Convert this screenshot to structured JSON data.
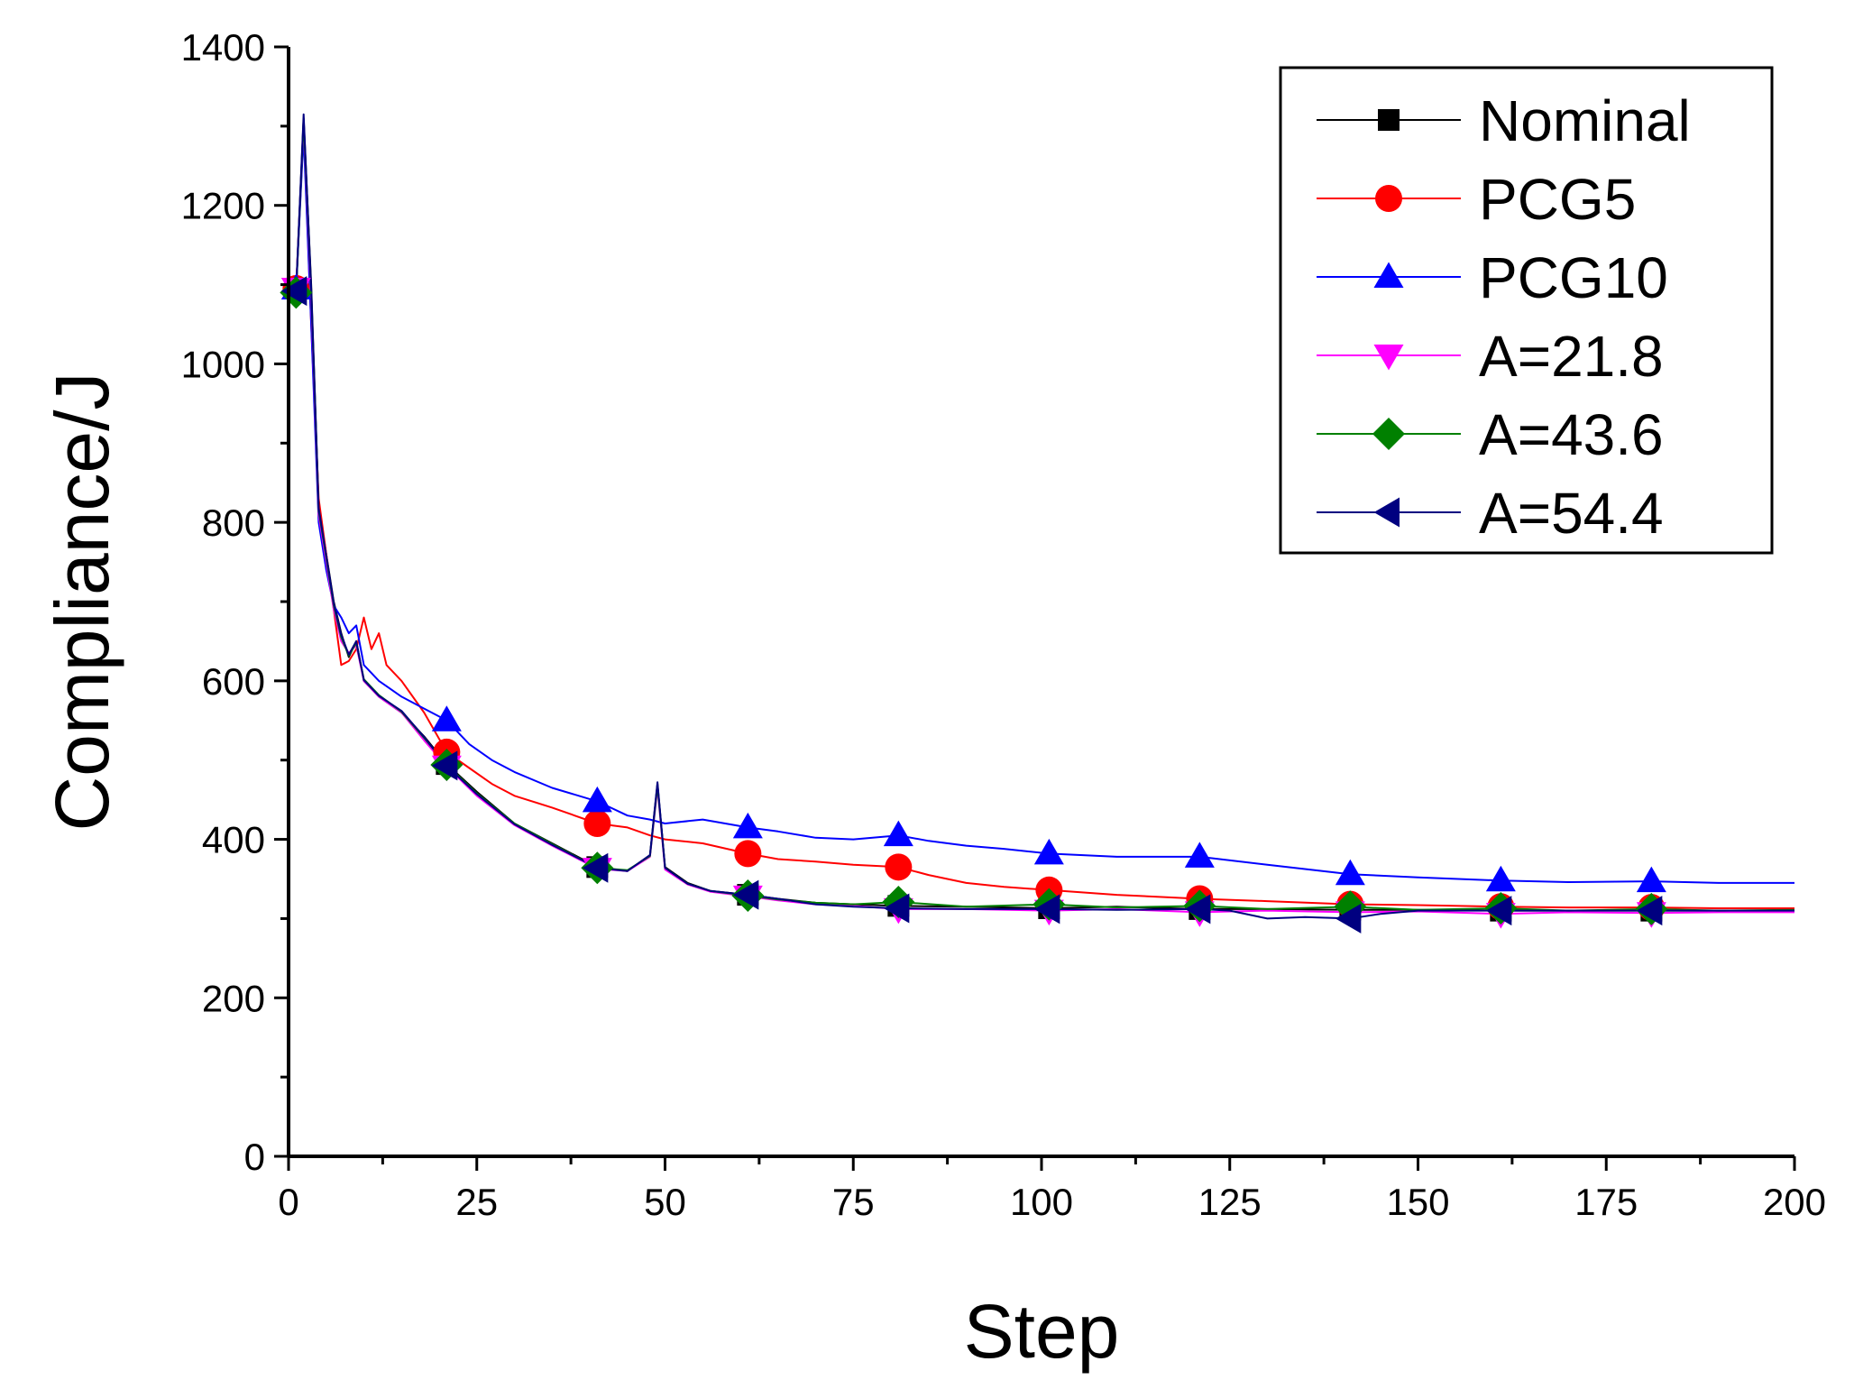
{
  "chart_data": {
    "type": "line",
    "title": "",
    "xlabel": "Step",
    "ylabel": "Compliance/J",
    "xlim": [
      0,
      200
    ],
    "ylim": [
      0,
      1400
    ],
    "xticks": [
      0,
      25,
      50,
      75,
      100,
      125,
      150,
      175,
      200
    ],
    "xtick_labels": [
      "0",
      "25",
      "50",
      "75",
      "100",
      "125",
      "150",
      "175",
      "200"
    ],
    "yticks": [
      0,
      200,
      400,
      600,
      800,
      1000,
      1200,
      1400
    ],
    "ytick_labels": [
      "0",
      "200",
      "400",
      "600",
      "800",
      "1000",
      "1200",
      "1400"
    ],
    "legend_position": "top-right",
    "marker_steps": [
      1,
      21,
      41,
      61,
      81,
      101,
      121,
      141,
      161,
      181
    ],
    "series": [
      {
        "name": "Nominal",
        "color": "#000000",
        "marker": "square",
        "points": [
          [
            0,
            1095
          ],
          [
            1,
            1095
          ],
          [
            2,
            1310
          ],
          [
            3,
            1100
          ],
          [
            4,
            820
          ],
          [
            5,
            760
          ],
          [
            6,
            700
          ],
          [
            7,
            660
          ],
          [
            8,
            630
          ],
          [
            9,
            650
          ],
          [
            10,
            600
          ],
          [
            12,
            580
          ],
          [
            15,
            560
          ],
          [
            18,
            530
          ],
          [
            21,
            495
          ],
          [
            25,
            460
          ],
          [
            30,
            420
          ],
          [
            35,
            395
          ],
          [
            41,
            365
          ],
          [
            45,
            360
          ],
          [
            48,
            380
          ],
          [
            49,
            470
          ],
          [
            50,
            365
          ],
          [
            53,
            345
          ],
          [
            56,
            335
          ],
          [
            61,
            330
          ],
          [
            65,
            325
          ],
          [
            70,
            320
          ],
          [
            75,
            318
          ],
          [
            81,
            316
          ],
          [
            90,
            315
          ],
          [
            101,
            313
          ],
          [
            110,
            315
          ],
          [
            121,
            312
          ],
          [
            130,
            312
          ],
          [
            141,
            311
          ],
          [
            150,
            311
          ],
          [
            161,
            310
          ],
          [
            170,
            310
          ],
          [
            181,
            310
          ],
          [
            190,
            310
          ],
          [
            200,
            310
          ]
        ]
      },
      {
        "name": "PCG5",
        "color": "#ff0000",
        "marker": "circle",
        "points": [
          [
            0,
            1095
          ],
          [
            1,
            1095
          ],
          [
            2,
            1300
          ],
          [
            3,
            1050
          ],
          [
            4,
            830
          ],
          [
            5,
            760
          ],
          [
            6,
            690
          ],
          [
            7,
            620
          ],
          [
            8,
            625
          ],
          [
            9,
            640
          ],
          [
            10,
            680
          ],
          [
            11,
            640
          ],
          [
            12,
            660
          ],
          [
            13,
            620
          ],
          [
            15,
            600
          ],
          [
            18,
            560
          ],
          [
            21,
            510
          ],
          [
            24,
            490
          ],
          [
            27,
            470
          ],
          [
            30,
            455
          ],
          [
            35,
            440
          ],
          [
            41,
            420
          ],
          [
            45,
            415
          ],
          [
            48,
            405
          ],
          [
            50,
            400
          ],
          [
            55,
            395
          ],
          [
            61,
            382
          ],
          [
            65,
            375
          ],
          [
            70,
            372
          ],
          [
            75,
            368
          ],
          [
            81,
            365
          ],
          [
            85,
            355
          ],
          [
            90,
            345
          ],
          [
            95,
            340
          ],
          [
            101,
            336
          ],
          [
            110,
            330
          ],
          [
            121,
            325
          ],
          [
            130,
            322
          ],
          [
            141,
            318
          ],
          [
            150,
            317
          ],
          [
            161,
            315
          ],
          [
            170,
            314
          ],
          [
            181,
            314
          ],
          [
            190,
            313
          ],
          [
            200,
            313
          ]
        ]
      },
      {
        "name": "PCG10",
        "color": "#0000ff",
        "marker": "triangle-up",
        "points": [
          [
            0,
            1095
          ],
          [
            1,
            1095
          ],
          [
            2,
            1290
          ],
          [
            3,
            1050
          ],
          [
            4,
            800
          ],
          [
            5,
            740
          ],
          [
            6,
            695
          ],
          [
            7,
            680
          ],
          [
            8,
            660
          ],
          [
            9,
            670
          ],
          [
            10,
            620
          ],
          [
            12,
            600
          ],
          [
            15,
            580
          ],
          [
            18,
            565
          ],
          [
            21,
            550
          ],
          [
            24,
            520
          ],
          [
            27,
            500
          ],
          [
            30,
            485
          ],
          [
            35,
            465
          ],
          [
            41,
            448
          ],
          [
            45,
            430
          ],
          [
            48,
            425
          ],
          [
            50,
            420
          ],
          [
            55,
            425
          ],
          [
            61,
            415
          ],
          [
            65,
            410
          ],
          [
            70,
            402
          ],
          [
            75,
            400
          ],
          [
            81,
            405
          ],
          [
            85,
            398
          ],
          [
            90,
            392
          ],
          [
            95,
            388
          ],
          [
            101,
            382
          ],
          [
            110,
            378
          ],
          [
            121,
            378
          ],
          [
            130,
            368
          ],
          [
            141,
            356
          ],
          [
            150,
            352
          ],
          [
            161,
            348
          ],
          [
            170,
            346
          ],
          [
            181,
            347
          ],
          [
            190,
            345
          ],
          [
            200,
            345
          ]
        ]
      },
      {
        "name": "A=21.8",
        "color": "#ff00ff",
        "marker": "triangle-down",
        "points": [
          [
            0,
            1095
          ],
          [
            1,
            1095
          ],
          [
            2,
            1305
          ],
          [
            3,
            1080
          ],
          [
            4,
            810
          ],
          [
            5,
            750
          ],
          [
            6,
            690
          ],
          [
            7,
            650
          ],
          [
            8,
            635
          ],
          [
            9,
            645
          ],
          [
            10,
            600
          ],
          [
            12,
            580
          ],
          [
            15,
            560
          ],
          [
            18,
            525
          ],
          [
            21,
            492
          ],
          [
            25,
            455
          ],
          [
            30,
            418
          ],
          [
            35,
            392
          ],
          [
            41,
            363
          ],
          [
            45,
            360
          ],
          [
            48,
            378
          ],
          [
            49,
            465
          ],
          [
            50,
            362
          ],
          [
            53,
            343
          ],
          [
            56,
            334
          ],
          [
            61,
            328
          ],
          [
            65,
            323
          ],
          [
            70,
            318
          ],
          [
            75,
            316
          ],
          [
            81,
            312
          ],
          [
            90,
            312
          ],
          [
            101,
            310
          ],
          [
            110,
            312
          ],
          [
            121,
            308
          ],
          [
            130,
            310
          ],
          [
            141,
            308
          ],
          [
            150,
            309
          ],
          [
            161,
            306
          ],
          [
            170,
            308
          ],
          [
            181,
            307
          ],
          [
            190,
            308
          ],
          [
            200,
            308
          ]
        ]
      },
      {
        "name": "A=43.6",
        "color": "#008000",
        "marker": "diamond",
        "points": [
          [
            0,
            1090
          ],
          [
            1,
            1090
          ],
          [
            2,
            1308
          ],
          [
            3,
            1090
          ],
          [
            4,
            815
          ],
          [
            5,
            755
          ],
          [
            6,
            695
          ],
          [
            7,
            655
          ],
          [
            8,
            632
          ],
          [
            9,
            648
          ],
          [
            10,
            602
          ],
          [
            12,
            582
          ],
          [
            15,
            561
          ],
          [
            18,
            528
          ],
          [
            21,
            494
          ],
          [
            25,
            458
          ],
          [
            30,
            420
          ],
          [
            35,
            394
          ],
          [
            41,
            364
          ],
          [
            45,
            361
          ],
          [
            48,
            379
          ],
          [
            49,
            468
          ],
          [
            50,
            364
          ],
          [
            53,
            344
          ],
          [
            56,
            335
          ],
          [
            61,
            329
          ],
          [
            65,
            324
          ],
          [
            70,
            320
          ],
          [
            75,
            318
          ],
          [
            81,
            321
          ],
          [
            90,
            315
          ],
          [
            101,
            318
          ],
          [
            110,
            314
          ],
          [
            121,
            316
          ],
          [
            130,
            312
          ],
          [
            141,
            315
          ],
          [
            150,
            311
          ],
          [
            161,
            313
          ],
          [
            170,
            310
          ],
          [
            181,
            312
          ],
          [
            190,
            310
          ],
          [
            200,
            311
          ]
        ]
      },
      {
        "name": "A=54.4",
        "color": "#000080",
        "marker": "triangle-left",
        "points": [
          [
            0,
            1092
          ],
          [
            1,
            1092
          ],
          [
            2,
            1315
          ],
          [
            3,
            1095
          ],
          [
            4,
            818
          ],
          [
            5,
            758
          ],
          [
            6,
            698
          ],
          [
            7,
            658
          ],
          [
            8,
            633
          ],
          [
            9,
            650
          ],
          [
            10,
            601
          ],
          [
            12,
            581
          ],
          [
            15,
            562
          ],
          [
            18,
            529
          ],
          [
            21,
            493
          ],
          [
            25,
            457
          ],
          [
            30,
            419
          ],
          [
            35,
            393
          ],
          [
            41,
            364
          ],
          [
            45,
            360
          ],
          [
            48,
            380
          ],
          [
            49,
            472
          ],
          [
            50,
            364
          ],
          [
            53,
            344
          ],
          [
            56,
            335
          ],
          [
            61,
            330
          ],
          [
            65,
            325
          ],
          [
            70,
            318
          ],
          [
            75,
            315
          ],
          [
            81,
            313
          ],
          [
            90,
            312
          ],
          [
            101,
            312
          ],
          [
            110,
            311
          ],
          [
            121,
            312
          ],
          [
            125,
            310
          ],
          [
            130,
            300
          ],
          [
            135,
            302
          ],
          [
            141,
            300
          ],
          [
            145,
            306
          ],
          [
            150,
            310
          ],
          [
            161,
            310
          ],
          [
            170,
            310
          ],
          [
            181,
            310
          ],
          [
            190,
            310
          ],
          [
            200,
            310
          ]
        ]
      }
    ]
  }
}
